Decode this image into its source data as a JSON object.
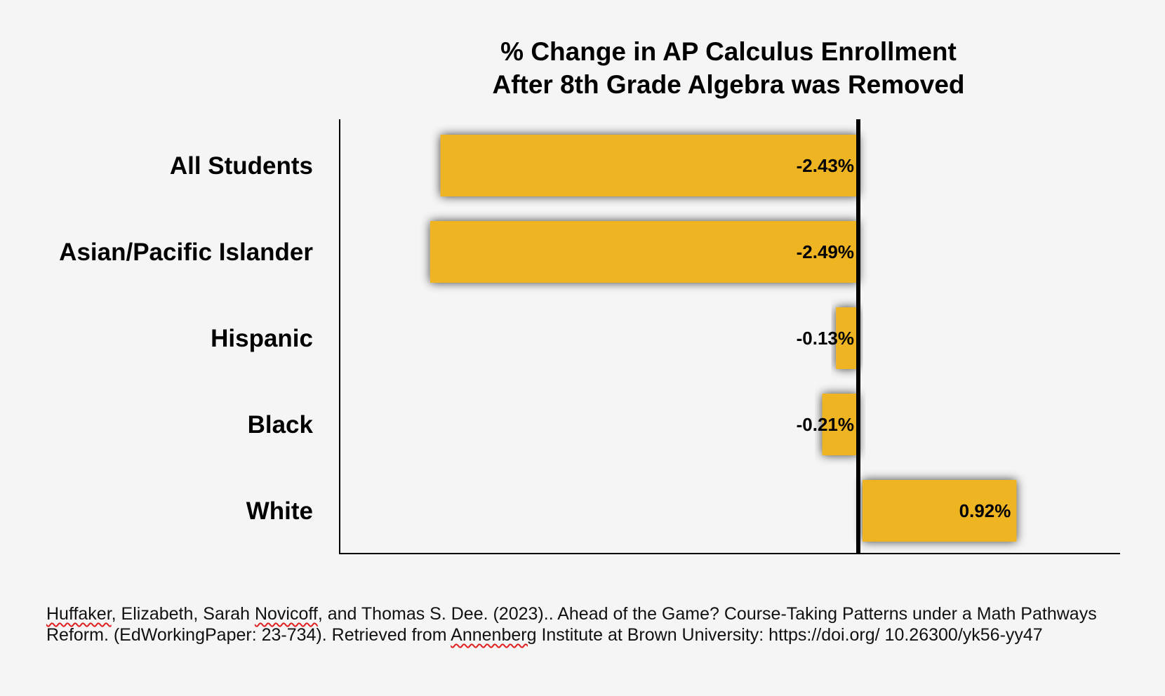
{
  "chart_data": {
    "type": "bar",
    "orientation": "horizontal",
    "title": [
      "% Change in AP Calculus Enrollment",
      "After 8th Grade Algebra was Removed"
    ],
    "categories": [
      "All Students",
      "Asian/Pacific Islander",
      "Hispanic",
      "Black",
      "White"
    ],
    "values": [
      -2.43,
      -2.49,
      -0.13,
      -0.21,
      0.92
    ],
    "value_labels": [
      "-2.43%",
      "-2.49%",
      "-0.13%",
      "-0.21%",
      "0.92%"
    ],
    "xlim": [
      -3.0,
      1.5
    ],
    "grid": false,
    "legend": "none",
    "bar_color": "#eeb422",
    "zero_line_color": "#000000"
  },
  "citation": {
    "w1": "Huffaker",
    "t1": ", Elizabeth, Sarah ",
    "w2": "Novicoff",
    "t2": ", and Thomas S. Dee. (2023).. Ahead of the Game? Course-Taking Patterns under a Math Pathways Reform. (EdWorkingPaper: 23-734). Retrieved from ",
    "w3": "Annenberg",
    "t3": " Institute at Brown University: https://doi.org/ 10.26300/yk56-yy47"
  }
}
